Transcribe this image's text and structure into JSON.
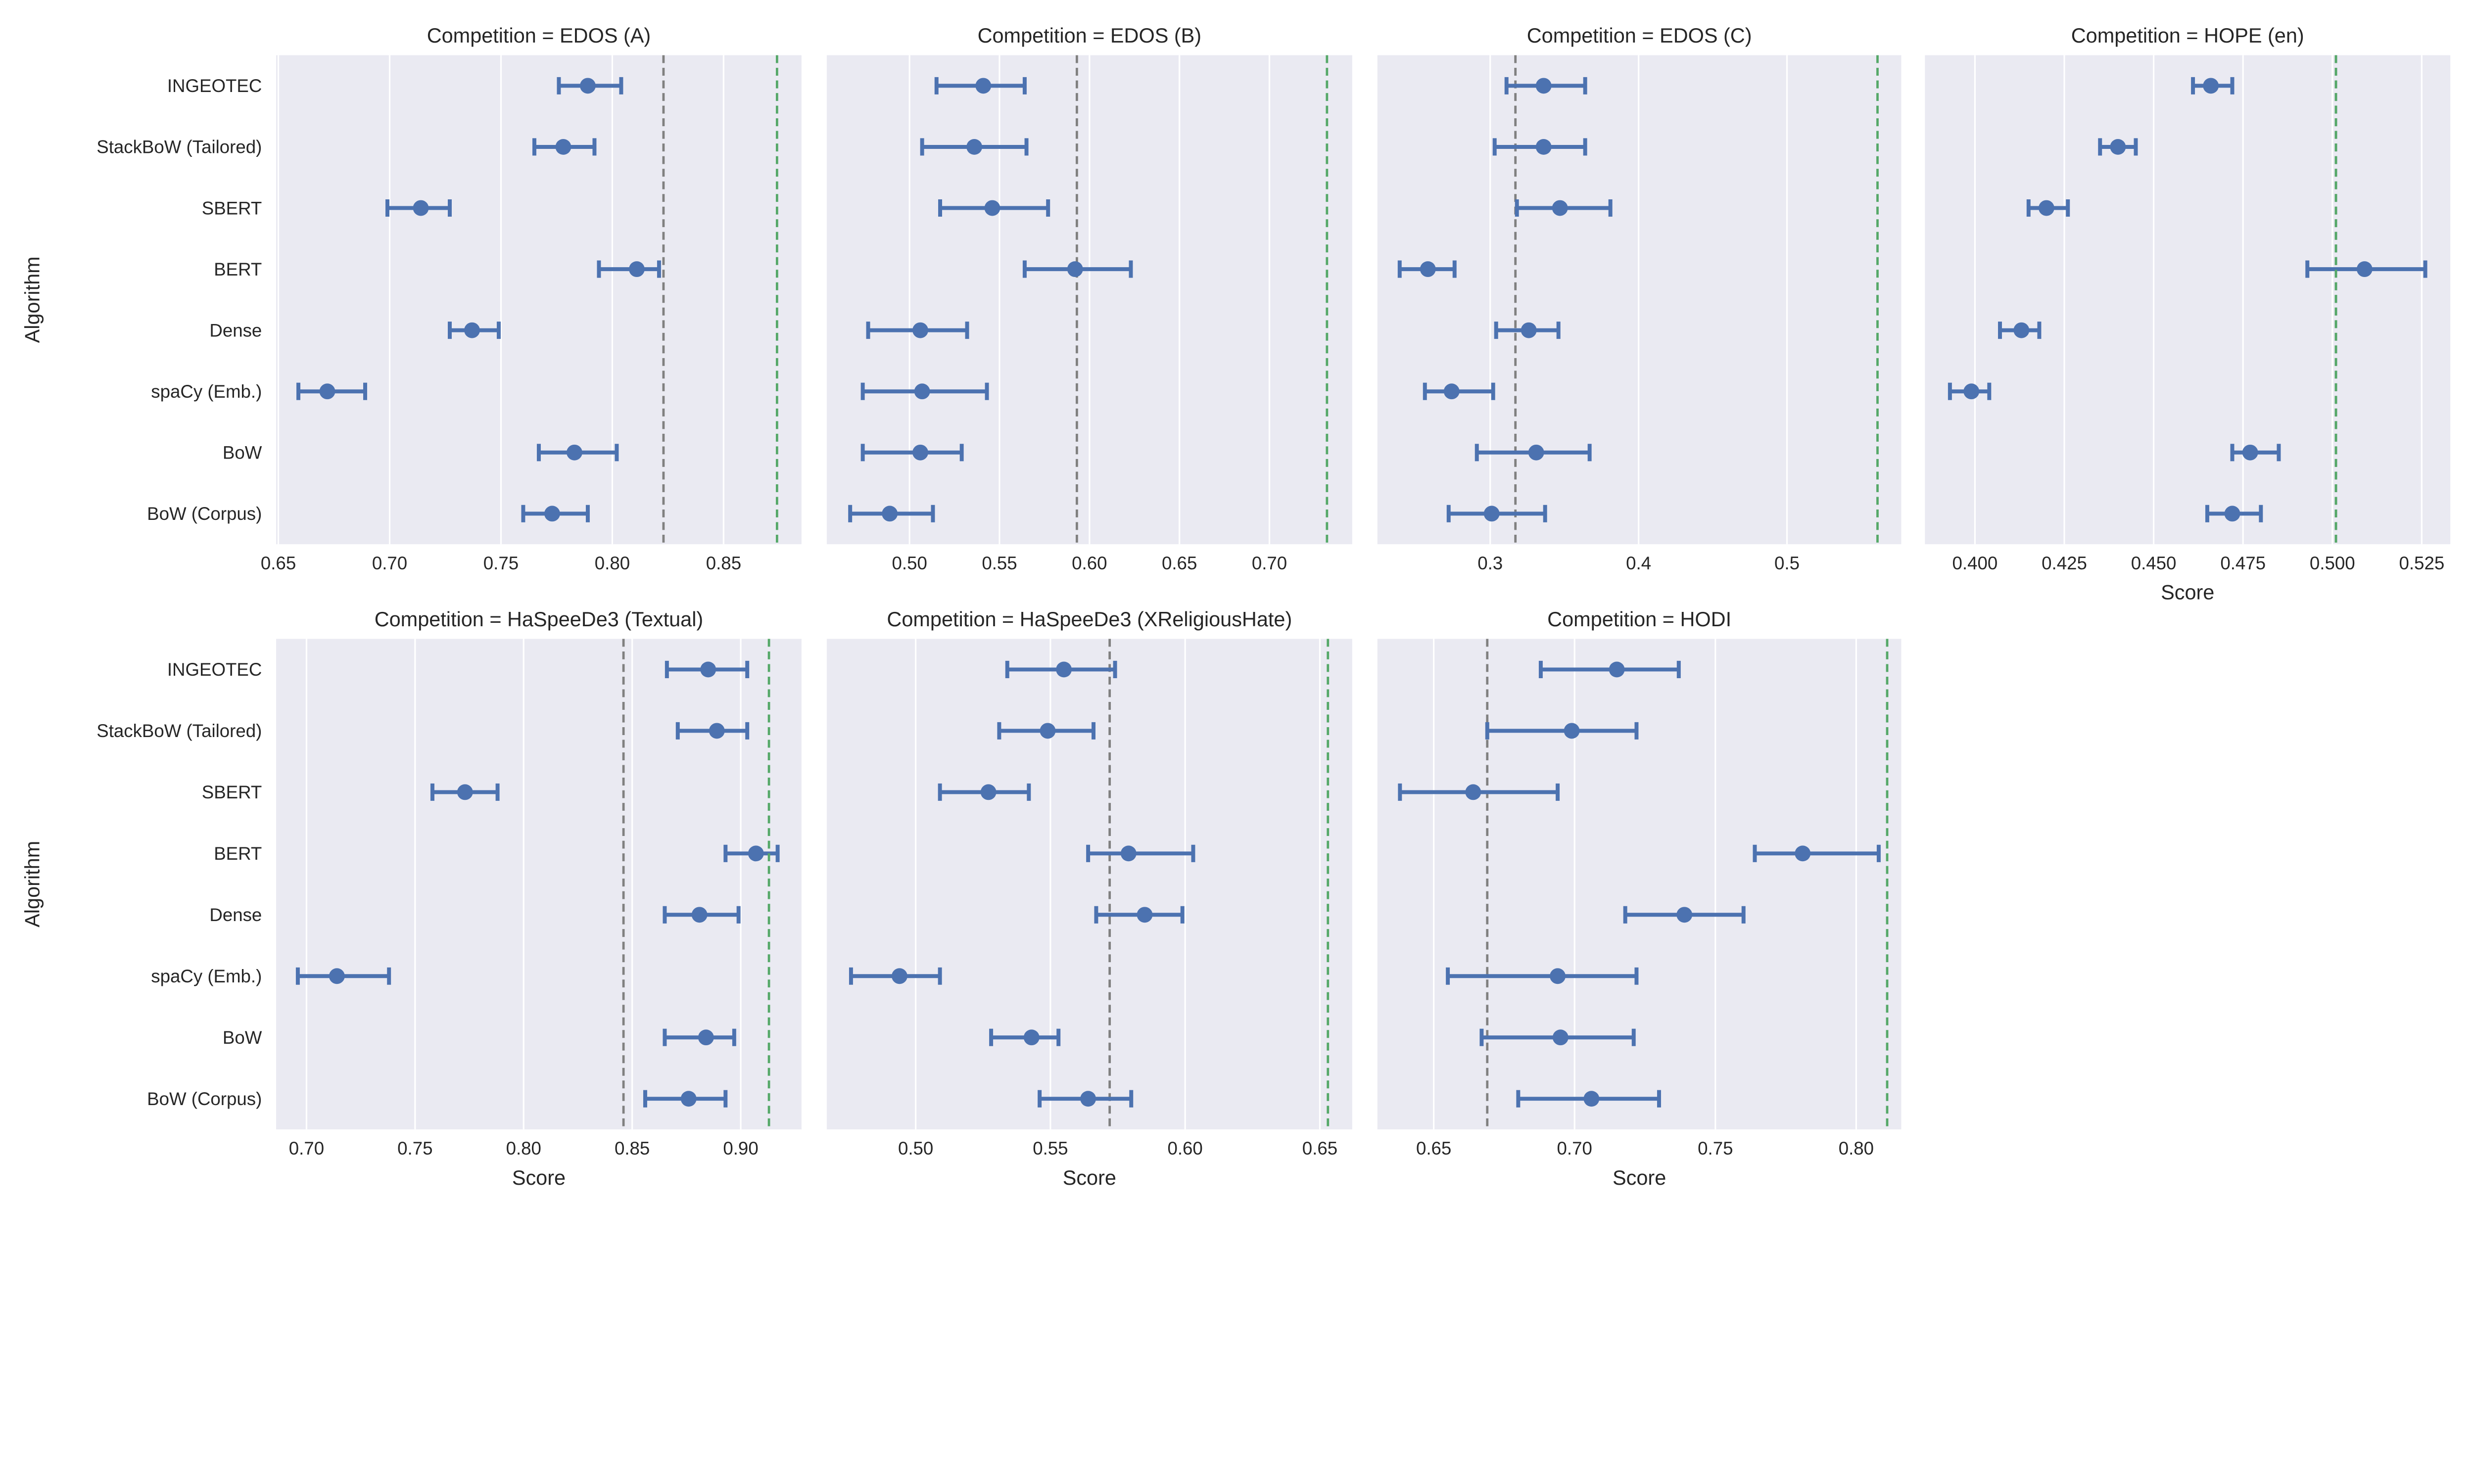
{
  "chart_data": {
    "type": "scatter",
    "style": "point estimates with horizontal error bars, faceted by competition",
    "xlabel": "Score",
    "ylabel": "Algorithm",
    "grid": true,
    "colors": {
      "points": "#4c72b0",
      "background": "#eaeaf2",
      "grid": "#ffffff",
      "gray_line": "#808080",
      "green_line": "#55a868"
    },
    "categories": [
      "INGEOTEC",
      "StackBoW (Tailored)",
      "SBERT",
      "BERT",
      "Dense",
      "spaCy (Emb.)",
      "BoW",
      "BoW (Corpus)"
    ],
    "panels": [
      {
        "title": "Competition = EDOS (A)",
        "xlim": [
          0.649,
          0.885
        ],
        "xticks": [
          "0.65",
          "0.70",
          "0.75",
          "0.80",
          "0.85"
        ],
        "gray_line": 0.823,
        "green_line": 0.874,
        "score": [
          0.789,
          0.778,
          0.714,
          0.811,
          0.737,
          0.672,
          0.783,
          0.773
        ],
        "ci_low": [
          0.776,
          0.765,
          0.699,
          0.794,
          0.727,
          0.659,
          0.767,
          0.76
        ],
        "ci_high": [
          0.804,
          0.792,
          0.727,
          0.821,
          0.749,
          0.689,
          0.802,
          0.789
        ]
      },
      {
        "title": "Competition = EDOS (B)",
        "xlim": [
          0.454,
          0.746
        ],
        "xticks": [
          "0.50",
          "0.55",
          "0.60",
          "0.65",
          "0.70"
        ],
        "gray_line": 0.593,
        "green_line": 0.732,
        "score": [
          0.541,
          0.536,
          0.546,
          0.592,
          0.506,
          0.507,
          0.506,
          0.489
        ],
        "ci_low": [
          0.515,
          0.507,
          0.517,
          0.564,
          0.477,
          0.474,
          0.474,
          0.467
        ],
        "ci_high": [
          0.564,
          0.565,
          0.577,
          0.623,
          0.532,
          0.543,
          0.529,
          0.513
        ]
      },
      {
        "title": "Competition = EDOS (C)",
        "xlim": [
          0.224,
          0.577
        ],
        "xticks": [
          "0.3",
          "0.4",
          "0.5"
        ],
        "gray_line": 0.317,
        "green_line": 0.561,
        "score": [
          0.336,
          0.336,
          0.347,
          0.258,
          0.326,
          0.274,
          0.331,
          0.301
        ],
        "ci_low": [
          0.311,
          0.303,
          0.318,
          0.239,
          0.304,
          0.256,
          0.291,
          0.272
        ],
        "ci_high": [
          0.364,
          0.364,
          0.381,
          0.276,
          0.346,
          0.302,
          0.367,
          0.337
        ]
      },
      {
        "title": "Competition = HOPE (en)",
        "xlim": [
          0.386,
          0.533
        ],
        "xticks": [
          "0.400",
          "0.425",
          "0.450",
          "0.475",
          "0.500",
          "0.525"
        ],
        "gray_line": 0.501,
        "green_line": 0.501,
        "show_xlabel": true,
        "score": [
          0.466,
          0.44,
          0.42,
          0.509,
          0.413,
          0.399,
          0.477,
          0.472
        ],
        "ci_low": [
          0.461,
          0.435,
          0.415,
          0.493,
          0.407,
          0.393,
          0.472,
          0.465
        ],
        "ci_high": [
          0.472,
          0.445,
          0.426,
          0.526,
          0.418,
          0.404,
          0.485,
          0.48
        ]
      },
      {
        "title": "Competition = HaSpeeDe3 (Textual)",
        "xlim": [
          0.686,
          0.928
        ],
        "xticks": [
          "0.70",
          "0.75",
          "0.80",
          "0.85",
          "0.90"
        ],
        "gray_line": 0.846,
        "green_line": 0.913,
        "show_xlabel": true,
        "score": [
          0.885,
          0.889,
          0.773,
          0.907,
          0.881,
          0.714,
          0.884,
          0.876
        ],
        "ci_low": [
          0.866,
          0.871,
          0.758,
          0.893,
          0.865,
          0.696,
          0.865,
          0.856
        ],
        "ci_high": [
          0.903,
          0.903,
          0.788,
          0.917,
          0.899,
          0.738,
          0.897,
          0.893
        ]
      },
      {
        "title": "Competition = HaSpeeDe3 (XReligiousHate)",
        "xlim": [
          0.467,
          0.662
        ],
        "xticks": [
          "0.50",
          "0.55",
          "0.60",
          "0.65"
        ],
        "gray_line": 0.572,
        "green_line": 0.653,
        "show_xlabel": true,
        "score": [
          0.555,
          0.549,
          0.527,
          0.579,
          0.585,
          0.494,
          0.543,
          0.564
        ],
        "ci_low": [
          0.534,
          0.531,
          0.509,
          0.564,
          0.567,
          0.476,
          0.528,
          0.546
        ],
        "ci_high": [
          0.574,
          0.566,
          0.542,
          0.603,
          0.599,
          0.509,
          0.553,
          0.58
        ]
      },
      {
        "title": "Competition = HODI",
        "xlim": [
          0.63,
          0.816
        ],
        "xticks": [
          "0.65",
          "0.70",
          "0.75",
          "0.80"
        ],
        "gray_line": 0.669,
        "green_line": 0.811,
        "show_xlabel": true,
        "score": [
          0.715,
          0.699,
          0.664,
          0.781,
          0.739,
          0.694,
          0.695,
          0.706
        ],
        "ci_low": [
          0.688,
          0.669,
          0.638,
          0.764,
          0.718,
          0.655,
          0.667,
          0.68
        ],
        "ci_high": [
          0.737,
          0.722,
          0.694,
          0.808,
          0.76,
          0.722,
          0.721,
          0.73
        ]
      }
    ]
  }
}
